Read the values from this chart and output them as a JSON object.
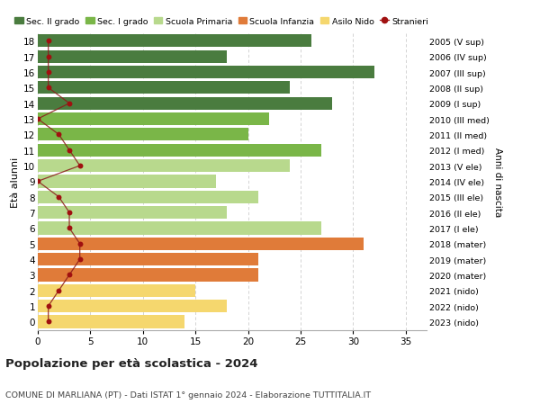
{
  "ages": [
    18,
    17,
    16,
    15,
    14,
    13,
    12,
    11,
    10,
    9,
    8,
    7,
    6,
    5,
    4,
    3,
    2,
    1,
    0
  ],
  "right_labels": [
    "2005 (V sup)",
    "2006 (IV sup)",
    "2007 (III sup)",
    "2008 (II sup)",
    "2009 (I sup)",
    "2010 (III med)",
    "2011 (II med)",
    "2012 (I med)",
    "2013 (V ele)",
    "2014 (IV ele)",
    "2015 (III ele)",
    "2016 (II ele)",
    "2017 (I ele)",
    "2018 (mater)",
    "2019 (mater)",
    "2020 (mater)",
    "2021 (nido)",
    "2022 (nido)",
    "2023 (nido)"
  ],
  "bar_values": [
    26,
    18,
    32,
    24,
    28,
    22,
    20,
    27,
    24,
    17,
    21,
    18,
    27,
    31,
    21,
    21,
    15,
    18,
    14
  ],
  "bar_colors": [
    "#4a7c3f",
    "#4a7c3f",
    "#4a7c3f",
    "#4a7c3f",
    "#4a7c3f",
    "#7ab648",
    "#7ab648",
    "#7ab648",
    "#b8d98d",
    "#b8d98d",
    "#b8d98d",
    "#b8d98d",
    "#b8d98d",
    "#e07b39",
    "#e07b39",
    "#e07b39",
    "#f5d76e",
    "#f5d76e",
    "#f5d76e"
  ],
  "stranieri_values": [
    1,
    1,
    1,
    1,
    3,
    0,
    2,
    3,
    4,
    0,
    2,
    3,
    3,
    4,
    4,
    3,
    2,
    1,
    1
  ],
  "legend_labels": [
    "Sec. II grado",
    "Sec. I grado",
    "Scuola Primaria",
    "Scuola Infanzia",
    "Asilo Nido",
    "Stranieri"
  ],
  "legend_colors": [
    "#4a7c3f",
    "#7ab648",
    "#b8d98d",
    "#e07b39",
    "#f5d76e",
    "#a01010"
  ],
  "ylabel_left": "Età alunni",
  "ylabel_right": "Anni di nascita",
  "title": "Popolazione per età scolastica - 2024",
  "subtitle": "COMUNE DI MARLIANA (PT) - Dati ISTAT 1° gennaio 2024 - Elaborazione TUTTITALIA.IT",
  "xlim": [
    0,
    37
  ],
  "xticks": [
    0,
    5,
    10,
    15,
    20,
    25,
    30,
    35
  ],
  "background_color": "#ffffff",
  "grid_color": "#cccccc",
  "bar_height": 0.82
}
